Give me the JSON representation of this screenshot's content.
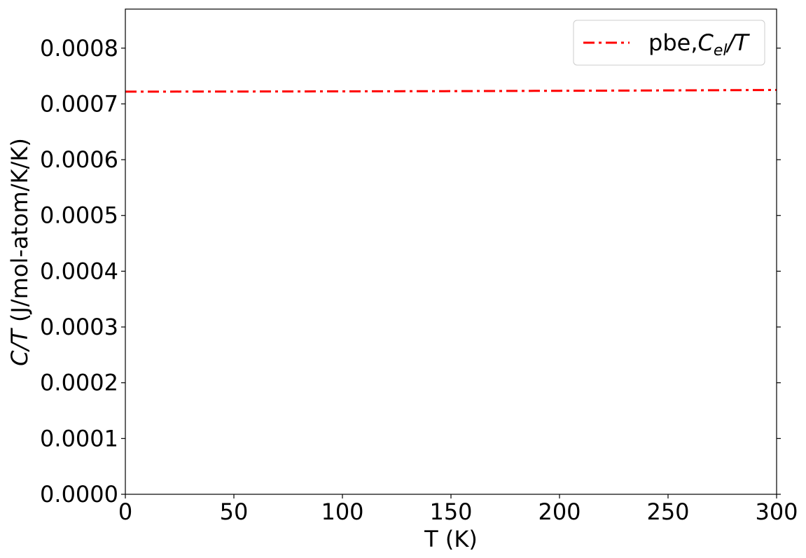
{
  "chart_data": {
    "type": "line",
    "title": "",
    "xlabel": "T (K)",
    "ylabel": {
      "italic": "C/T",
      "rest": " (J/mol-atom/K/K)"
    },
    "xlim": [
      0,
      300
    ],
    "ylim": [
      0,
      0.00087
    ],
    "xticks": [
      0,
      50,
      100,
      150,
      200,
      250,
      300
    ],
    "xtick_labels": [
      "0",
      "50",
      "100",
      "150",
      "200",
      "250",
      "300"
    ],
    "yticks": [
      0,
      0.0001,
      0.0002,
      0.0003,
      0.0004,
      0.0005,
      0.0006,
      0.0007,
      0.0008
    ],
    "ytick_labels": [
      "0.0000",
      "0.0001",
      "0.0002",
      "0.0003",
      "0.0004",
      "0.0005",
      "0.0006",
      "0.0007",
      "0.0008"
    ],
    "grid": false,
    "legend_position": "top-right",
    "series": [
      {
        "legend_prefix": "pbe,",
        "legend_symbol": "C",
        "legend_subscript": "el",
        "legend_suffix": "/T",
        "color": "#ff0000",
        "line_style": "dash-dot",
        "x": [
          0,
          50,
          100,
          150,
          200,
          250,
          300
        ],
        "y": [
          0.000722,
          0.0007222,
          0.0007225,
          0.0007229,
          0.0007235,
          0.0007242,
          0.000725
        ]
      }
    ]
  }
}
